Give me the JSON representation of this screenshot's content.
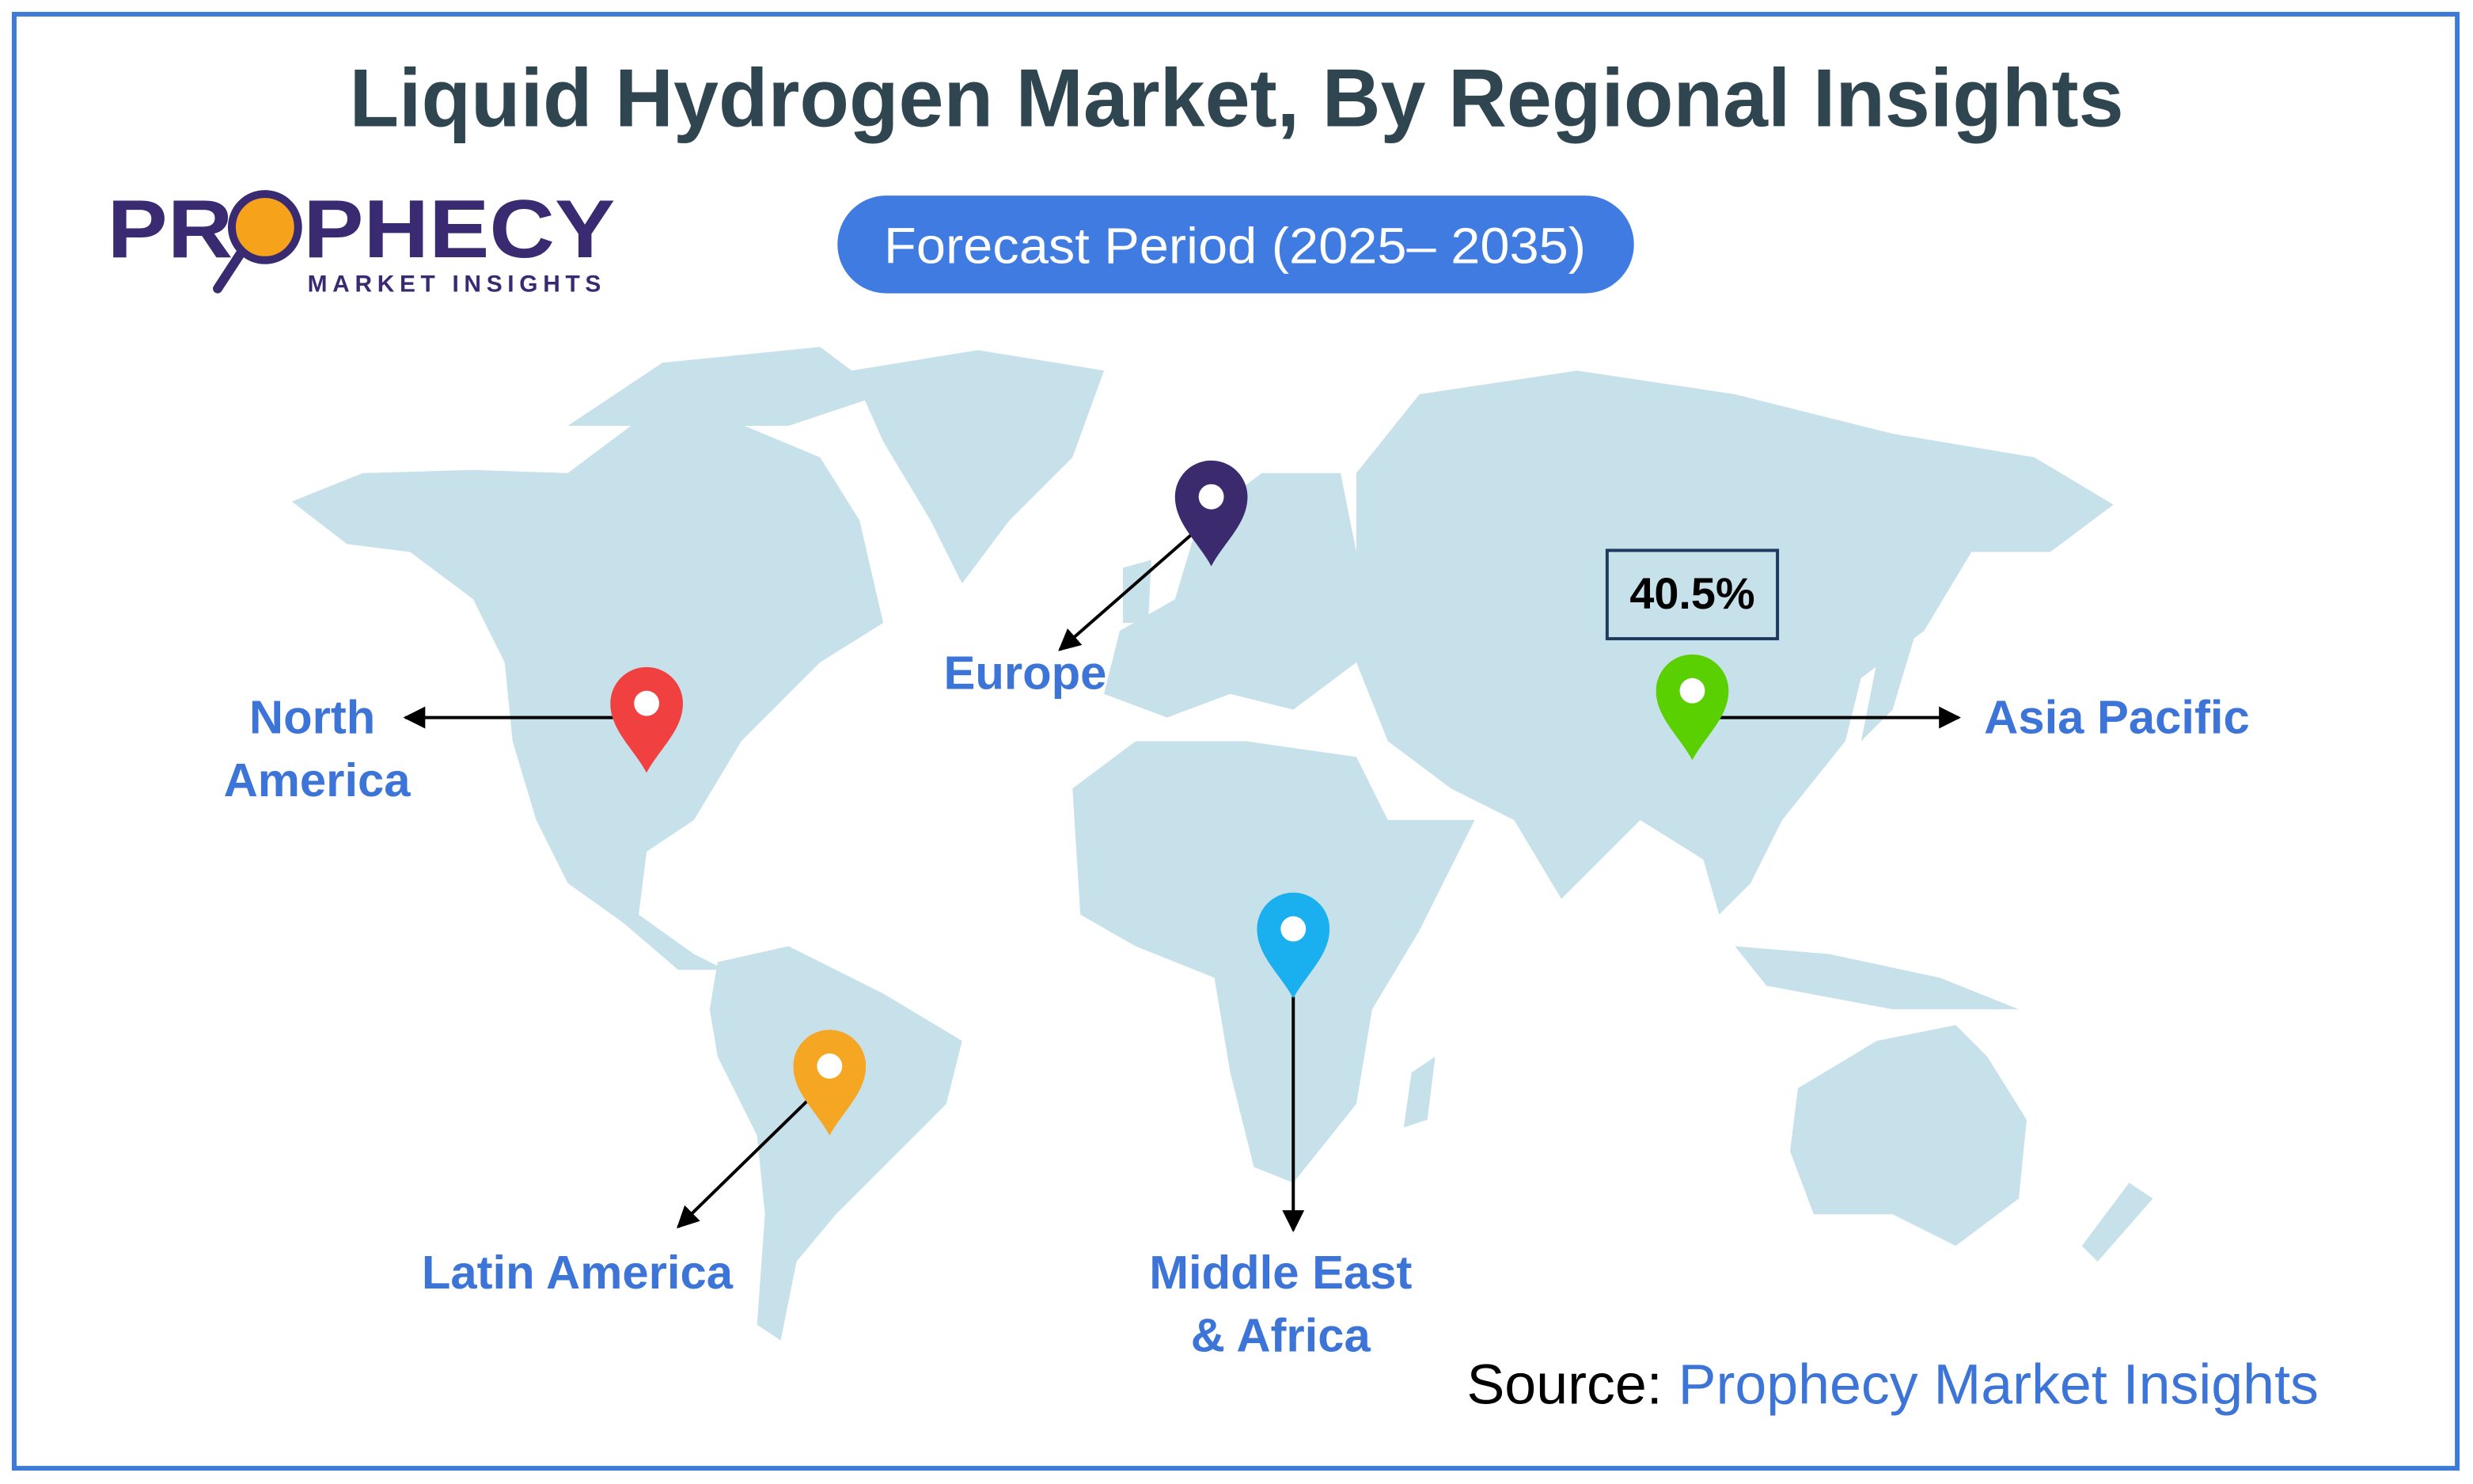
{
  "title": "Liquid Hydrogen Market, By Regional Insights",
  "logo": {
    "name": "PROPHECY",
    "tagline": "MARKET INSIGHTS"
  },
  "forecast_period": "Forecast Period (2025– 2035)",
  "regions": [
    {
      "lines": [
        "North",
        "America"
      ]
    },
    {
      "lines": [
        "Europe"
      ]
    },
    {
      "lines": [
        "Asia Pacific"
      ],
      "share": "40.5%"
    },
    {
      "lines": [
        "Latin America"
      ]
    },
    {
      "lines": [
        "Middle East",
        "& Africa"
      ]
    }
  ],
  "source": {
    "label": "Source:",
    "name": "Prophecy Market Insights"
  }
}
